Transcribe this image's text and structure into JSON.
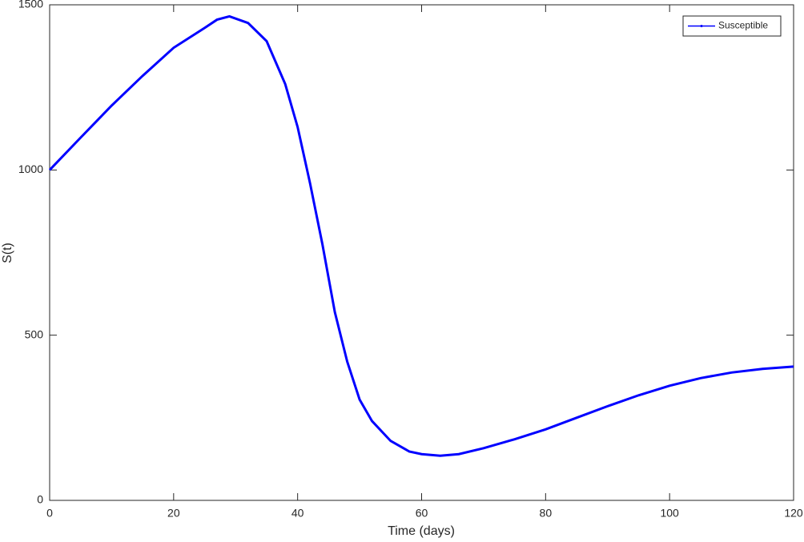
{
  "chart_data": {
    "type": "line",
    "x": [
      0,
      5,
      10,
      15,
      20,
      25,
      27,
      29,
      32,
      35,
      38,
      40,
      42,
      44,
      46,
      48,
      50,
      52,
      55,
      58,
      60,
      63,
      66,
      70,
      75,
      80,
      85,
      90,
      95,
      100,
      105,
      110,
      115,
      120
    ],
    "series": [
      {
        "name": "Susceptible",
        "color": "#0000ff",
        "values": [
          1000,
          1098,
          1195,
          1285,
          1370,
          1430,
          1455,
          1465,
          1445,
          1390,
          1260,
          1130,
          960,
          775,
          570,
          420,
          305,
          240,
          180,
          148,
          140,
          135,
          140,
          158,
          185,
          215,
          250,
          285,
          318,
          347,
          370,
          387,
          398,
          405
        ]
      }
    ],
    "xlabel": "Time (days)",
    "ylabel": "S(t)",
    "xlim": [
      0,
      120
    ],
    "xticks": [
      0,
      20,
      40,
      60,
      80,
      100,
      120
    ],
    "ylim": [
      0,
      1500
    ],
    "yticks": [
      0,
      500,
      1000,
      1500
    ],
    "legend": "top-right",
    "grid": false
  }
}
